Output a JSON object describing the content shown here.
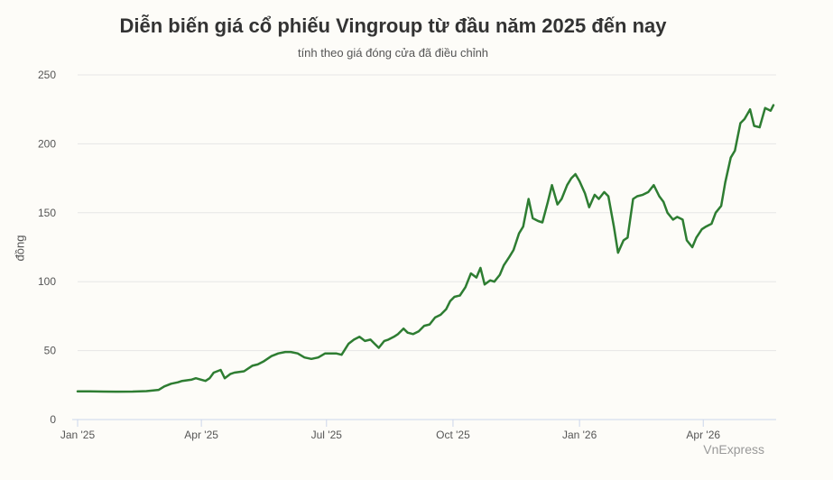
{
  "chart_data": {
    "type": "line",
    "title": "Diễn biến giá cổ phiếu Vingroup từ đầu năm 2025 đến nay",
    "subtitle": "tính theo giá đóng cửa đã điều chỉnh",
    "xlabel": "",
    "ylabel": "đồng",
    "ylim": [
      0,
      250
    ],
    "yticks": [
      0,
      50,
      100,
      150,
      200,
      250
    ],
    "xlim": [
      "2025-01-01",
      "2026-05-24"
    ],
    "xticks": [
      {
        "date": "2025-01-01",
        "label": "Jan '25"
      },
      {
        "date": "2025-04-01",
        "label": "Apr '25"
      },
      {
        "date": "2025-07-01",
        "label": "Jul '25"
      },
      {
        "date": "2025-10-01",
        "label": "Oct '25"
      },
      {
        "date": "2026-01-01",
        "label": "Jan '26"
      },
      {
        "date": "2026-04-01",
        "label": "Apr '26"
      }
    ],
    "grid": true,
    "line_color": "#2e7d32",
    "source": "VnExpress",
    "series": [
      {
        "x": [
          "2025-01-01",
          "2025-01-10",
          "2025-01-20",
          "2025-01-31",
          "2025-02-10",
          "2025-02-20",
          "2025-03-01",
          "2025-03-05",
          "2025-03-10",
          "2025-03-15",
          "2025-03-18",
          "2025-03-25",
          "2025-03-28",
          "2025-04-04",
          "2025-04-07",
          "2025-04-10",
          "2025-04-15",
          "2025-04-18",
          "2025-04-22",
          "2025-04-25",
          "2025-05-02",
          "2025-05-08",
          "2025-05-12",
          "2025-05-16",
          "2025-05-22",
          "2025-05-27",
          "2025-06-01",
          "2025-06-05",
          "2025-06-10",
          "2025-06-15",
          "2025-06-20",
          "2025-06-25",
          "2025-06-30",
          "2025-07-03",
          "2025-07-08",
          "2025-07-12",
          "2025-07-17",
          "2025-07-21",
          "2025-07-25",
          "2025-07-29",
          "2025-08-02",
          "2025-08-05",
          "2025-08-08",
          "2025-08-12",
          "2025-08-15",
          "2025-08-19",
          "2025-08-22",
          "2025-08-26",
          "2025-08-29",
          "2025-09-02",
          "2025-09-06",
          "2025-09-10",
          "2025-09-14",
          "2025-09-18",
          "2025-09-22",
          "2025-09-26",
          "2025-09-29",
          "2025-10-02",
          "2025-10-06",
          "2025-10-10",
          "2025-10-14",
          "2025-10-18",
          "2025-10-21",
          "2025-10-24",
          "2025-10-28",
          "2025-10-31",
          "2025-11-04",
          "2025-11-07",
          "2025-11-11",
          "2025-11-14",
          "2025-11-18",
          "2025-11-21",
          "2025-11-25",
          "2025-11-28",
          "2025-12-02",
          "2025-12-05",
          "2025-12-09",
          "2025-12-12",
          "2025-12-16",
          "2025-12-19",
          "2025-12-23",
          "2025-12-26",
          "2025-12-29",
          "2026-01-01",
          "2026-01-05",
          "2026-01-08",
          "2026-01-12",
          "2026-01-15",
          "2026-01-19",
          "2026-01-22",
          "2026-01-26",
          "2026-01-29",
          "2026-02-02",
          "2026-02-05",
          "2026-02-09",
          "2026-02-12",
          "2026-02-16",
          "2026-02-20",
          "2026-02-24",
          "2026-02-28",
          "2026-03-03",
          "2026-03-06",
          "2026-03-10",
          "2026-03-13",
          "2026-03-17",
          "2026-03-20",
          "2026-03-24",
          "2026-03-27",
          "2026-03-31",
          "2026-04-03",
          "2026-04-07",
          "2026-04-10",
          "2026-04-14",
          "2026-04-17",
          "2026-04-21",
          "2026-04-24",
          "2026-04-28",
          "2026-05-01",
          "2026-05-05",
          "2026-05-08",
          "2026-05-12",
          "2026-05-16",
          "2026-05-20",
          "2026-05-22"
        ],
        "y": [
          20.5,
          20.5,
          20.3,
          20.2,
          20.3,
          20.6,
          21.5,
          24,
          26,
          27,
          28,
          29,
          30,
          28,
          30,
          34,
          36,
          30,
          33,
          34,
          35,
          39,
          40,
          42,
          46,
          48,
          49,
          49,
          48,
          45,
          44,
          45,
          48,
          48,
          48,
          47,
          55,
          58,
          60,
          57,
          58,
          55,
          52,
          57,
          58,
          60,
          62,
          66,
          63,
          62,
          64,
          68,
          69,
          74,
          76,
          80,
          86,
          89,
          90,
          96,
          106,
          103,
          110,
          98,
          101,
          100,
          105,
          112,
          118,
          123,
          135,
          140,
          160,
          146,
          144,
          143,
          158,
          170,
          156,
          160,
          170,
          175,
          178,
          173,
          164,
          154,
          163,
          160,
          165,
          162,
          140,
          121,
          130,
          132,
          160,
          162,
          163,
          165,
          170,
          162,
          158,
          150,
          145,
          147,
          145,
          130,
          125,
          132,
          138,
          140,
          142,
          150,
          155,
          172,
          190,
          195,
          215,
          218,
          225,
          213,
          212,
          226,
          224,
          228
        ]
      }
    ]
  }
}
